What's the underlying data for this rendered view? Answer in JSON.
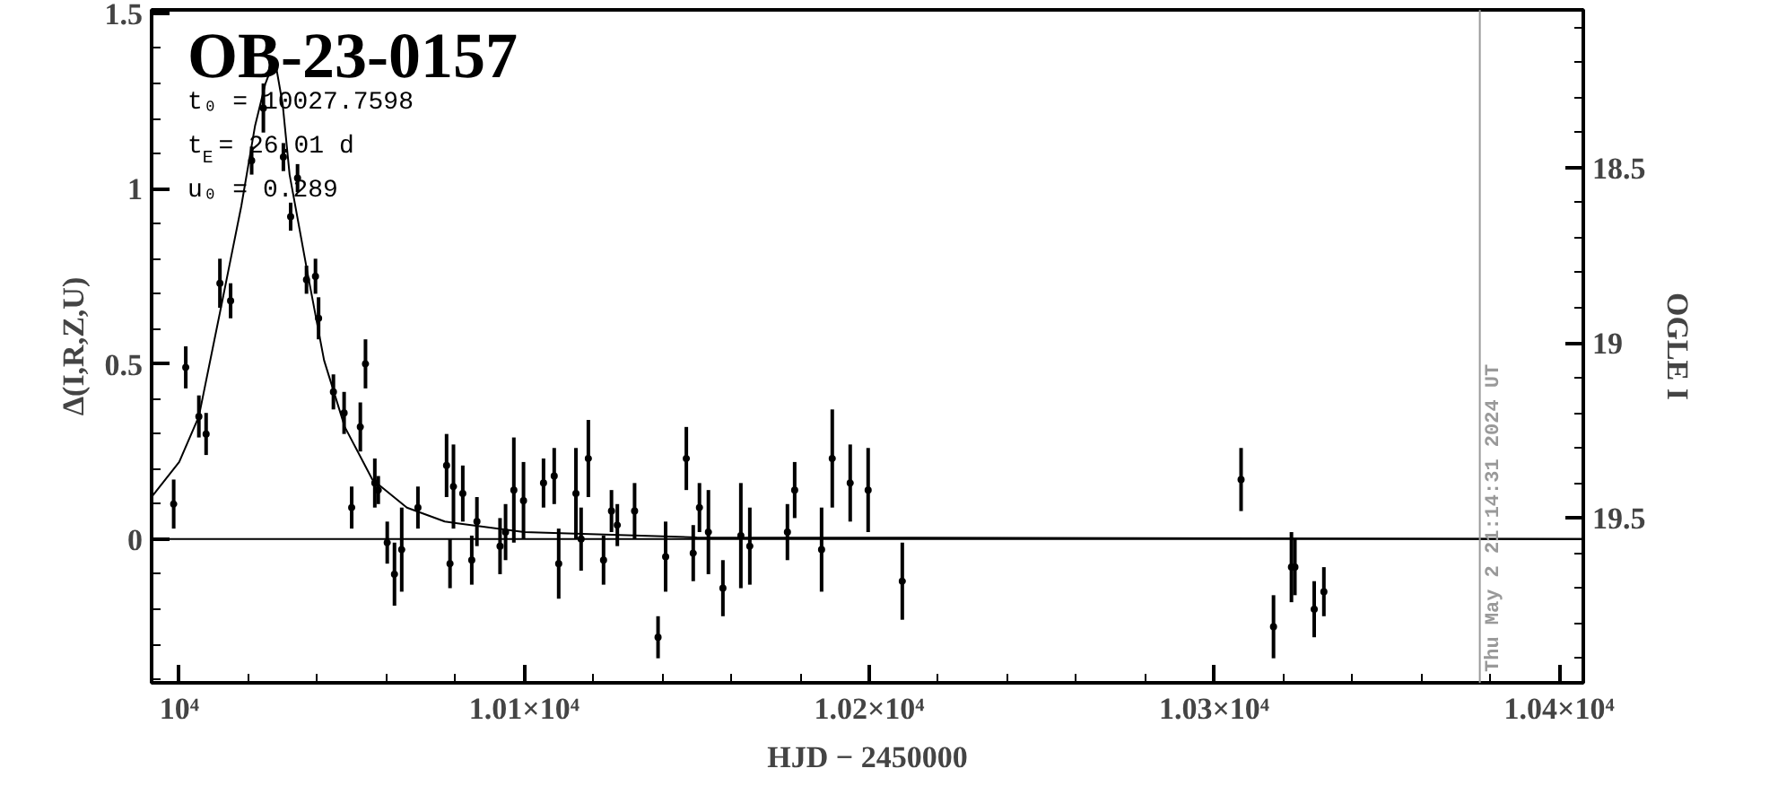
{
  "chart_data": {
    "type": "scatter",
    "title": "OB-23-0157",
    "xlabel": "HJD − 2450000",
    "ylabel": "Δ(I,R,Z,U)",
    "y2label": "OGLE I",
    "xlim": [
      9992,
      10407
    ],
    "ylim": [
      -0.41,
      1.51
    ],
    "y2lim": [
      19.97,
      18.05
    ],
    "xticks": [
      {
        "value": 10000,
        "label": "10⁴"
      },
      {
        "value": 10100,
        "label": "1.01×10⁴"
      },
      {
        "value": 10200,
        "label": "1.02×10⁴"
      },
      {
        "value": 10300,
        "label": "1.03×10⁴"
      },
      {
        "value": 10400,
        "label": "1.04×10⁴"
      }
    ],
    "yticks": [
      0,
      0.5,
      1,
      1.5
    ],
    "y2ticks": [
      18.5,
      19,
      19.5
    ],
    "grid": false,
    "annotations": [
      "t₀ = 10027.7598",
      "t$_{E}$ = 26.01 d",
      "u₀ = 0.289",
      "Thu May  2 21:14:31 2024 UT"
    ],
    "ref_lines": [
      {
        "axis": "y",
        "value": 0,
        "color": "#000000"
      },
      {
        "axis": "x",
        "value": 10377,
        "color": "#999999"
      }
    ],
    "series": [
      {
        "color": "#000000",
        "marker": "circle",
        "x": [
          9998.4,
          10001.9,
          10005.7,
          10007.8,
          10011.8,
          10014.9,
          10021.0,
          10024.4,
          10030.2,
          10032.3,
          10034.3,
          10036.9,
          10039.5,
          10040.4,
          10044.7,
          10047.8,
          10050.0,
          10052.5,
          10054.0,
          10056.7,
          10057.7,
          10060.3,
          10062.4,
          10064.5,
          10069.2,
          10077.5,
          10078.5,
          10079.5,
          10082.2,
          10084.8,
          10086.3,
          10093.0,
          10094.6,
          10097.0,
          10099.8,
          10105.6,
          10108.7,
          10110.0,
          10115.0,
          10116.5,
          10118.6,
          10123.0,
          10125.3,
          10127.0,
          10132.0,
          10138.8,
          10141.0,
          10147.0,
          10149.0,
          10150.8,
          10153.4,
          10157.6,
          10162.8,
          10165.4,
          10176.3,
          10178.4,
          10186.2,
          10189.3,
          10194.5,
          10199.7,
          10209.6,
          10307.8,
          10317.2,
          10322.4,
          10323.4,
          10329.0,
          10331.8
        ],
        "values": [
          0.1,
          0.49,
          0.35,
          0.3,
          0.73,
          0.68,
          1.08,
          1.23,
          1.09,
          0.92,
          1.03,
          0.74,
          0.75,
          0.63,
          0.42,
          0.36,
          0.09,
          0.32,
          0.5,
          0.16,
          0.14,
          -0.01,
          -0.1,
          -0.03,
          0.09,
          0.21,
          -0.07,
          0.15,
          0.13,
          -0.06,
          0.05,
          -0.02,
          0.02,
          0.14,
          0.11,
          0.16,
          0.18,
          -0.07,
          0.13,
          0.0,
          0.23,
          -0.06,
          0.08,
          0.04,
          0.08,
          -0.28,
          -0.05,
          0.23,
          -0.04,
          0.09,
          0.02,
          -0.14,
          0.01,
          -0.02,
          0.02,
          0.14,
          -0.03,
          0.23,
          0.16,
          0.14,
          -0.12,
          0.17,
          -0.25,
          -0.08,
          -0.08,
          -0.2,
          -0.15
        ],
        "errors": [
          0.07,
          0.06,
          0.06,
          0.06,
          0.07,
          0.05,
          0.04,
          0.07,
          0.04,
          0.04,
          0.04,
          0.04,
          0.05,
          0.06,
          0.05,
          0.06,
          0.06,
          0.07,
          0.07,
          0.07,
          0.04,
          0.06,
          0.09,
          0.12,
          0.06,
          0.09,
          0.07,
          0.12,
          0.08,
          0.07,
          0.07,
          0.08,
          0.08,
          0.15,
          0.11,
          0.07,
          0.08,
          0.1,
          0.13,
          0.09,
          0.11,
          0.07,
          0.06,
          0.06,
          0.08,
          0.06,
          0.1,
          0.09,
          0.08,
          0.07,
          0.12,
          0.08,
          0.15,
          0.11,
          0.08,
          0.08,
          0.12,
          0.14,
          0.11,
          0.12,
          0.11,
          0.09,
          0.09,
          0.1,
          0.08,
          0.08,
          0.07
        ]
      },
      {
        "type": "line",
        "color": "#000000",
        "marker": "none",
        "x": [
          9992,
          10000,
          10005.7,
          10012.5,
          10018,
          10022,
          10025,
          10027.7,
          10030,
          10032,
          10037,
          10042,
          10048,
          10056,
          10066,
          10077,
          10100,
          10150,
          10407
        ],
        "values": [
          0.12,
          0.22,
          0.35,
          0.68,
          0.95,
          1.18,
          1.3,
          1.37,
          1.24,
          1.04,
          0.77,
          0.51,
          0.32,
          0.17,
          0.09,
          0.05,
          0.02,
          0.005,
          0.0
        ]
      }
    ]
  }
}
